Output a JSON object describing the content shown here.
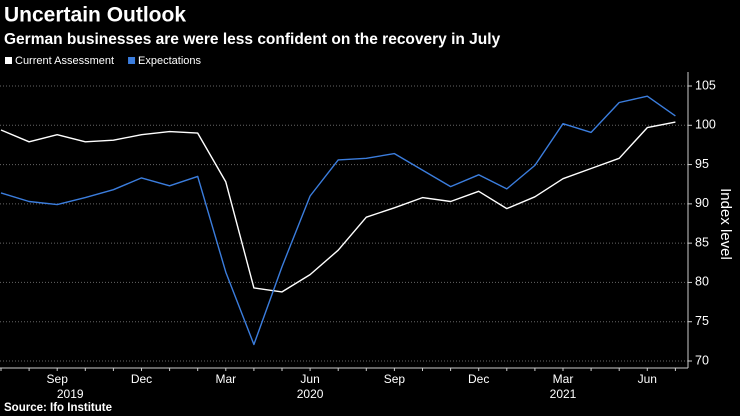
{
  "chart_data": {
    "type": "line",
    "title": "Uncertain Outlook",
    "subtitle": "German businesses are were less confident on the recovery in July",
    "y_label": "Index level",
    "source": "Source: Ifo Institute",
    "categories": [
      null,
      null,
      "Sep",
      null,
      null,
      "Dec",
      null,
      null,
      "Mar",
      null,
      null,
      "Jun",
      null,
      null,
      "Sep",
      null,
      null,
      "Dec",
      null,
      null,
      "Mar",
      null,
      null,
      "Jun",
      null
    ],
    "year_labels": [
      {
        "label": "2019",
        "index": 2
      },
      {
        "label": "2020",
        "index": 11
      },
      {
        "label": "2021",
        "index": 20
      }
    ],
    "series": [
      {
        "name": "Current Assessment",
        "color": "#ffffff",
        "values": [
          99.4,
          97.9,
          98.8,
          97.9,
          98.1,
          98.8,
          99.2,
          99.0,
          92.8,
          79.3,
          78.8,
          81.0,
          84.1,
          88.3,
          89.5,
          90.8,
          90.3,
          91.6,
          89.4,
          90.9,
          93.2,
          94.5,
          95.8,
          99.7,
          100.4
        ]
      },
      {
        "name": "Expectations",
        "color": "#3b7ddd",
        "values": [
          91.4,
          90.3,
          89.9,
          90.8,
          91.8,
          93.3,
          92.3,
          93.5,
          81.3,
          72.1,
          82.0,
          91.0,
          95.6,
          95.8,
          96.4,
          94.3,
          92.2,
          93.7,
          91.9,
          94.9,
          100.2,
          99.1,
          102.9,
          103.7,
          101.2
        ]
      }
    ],
    "ylim": [
      70,
      105
    ],
    "yticks": [
      70,
      75,
      80,
      85,
      90,
      95,
      100,
      105
    ],
    "grid": true,
    "legend": "top-left"
  }
}
